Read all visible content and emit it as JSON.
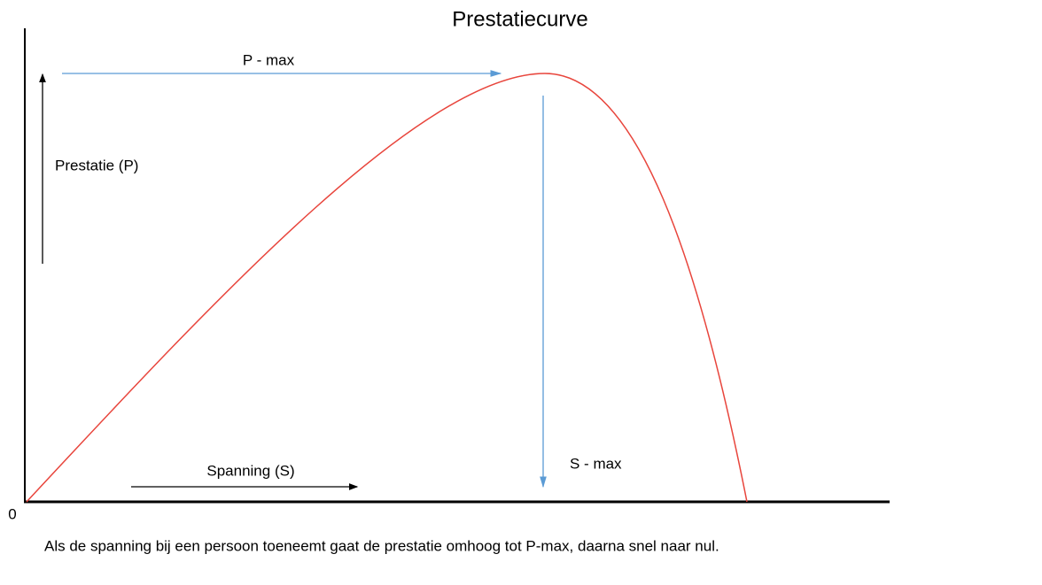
{
  "title": "Prestatiecurve",
  "y_axis_label": "Prestatie (P)",
  "x_axis_label": "Spanning (S)",
  "peak_label": "P - max",
  "drop_label": "S - max",
  "origin_label": "0",
  "caption": "Als de spanning bij een persoon toeneemt gaat de prestatie omhoog tot P-max, daarna snel naar nul."
}
